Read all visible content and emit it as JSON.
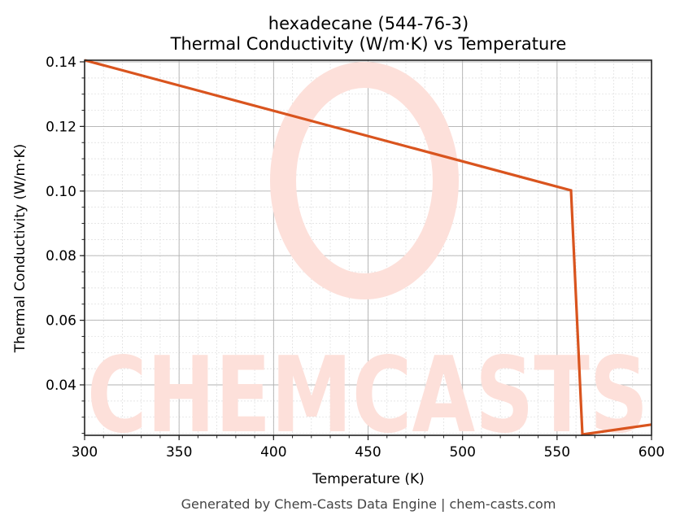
{
  "chart_data": {
    "type": "line",
    "title": "hexadecane (544-76-3)",
    "subtitle": "Thermal Conductivity (W/m·K) vs Temperature",
    "xlabel": "Temperature (K)",
    "ylabel": "Thermal Conductivity (W/m·K)",
    "xlim": [
      300,
      600
    ],
    "ylim": [
      0.0244,
      0.1405
    ],
    "xticks": [
      300,
      350,
      400,
      450,
      500,
      550,
      600
    ],
    "xtick_labels": [
      "300",
      "350",
      "400",
      "450",
      "500",
      "550",
      "600"
    ],
    "yticks": [
      0.04,
      0.06,
      0.08,
      0.1,
      0.12,
      0.14
    ],
    "ytick_labels": [
      "0.04",
      "0.06",
      "0.08",
      "0.10",
      "0.12",
      "0.14"
    ],
    "grid": true,
    "minor_grid": true,
    "legend": null,
    "series": [
      {
        "name": "Thermal Conductivity",
        "color": "#d9541e",
        "x": [
          300,
          557.4,
          563.4,
          600
        ],
        "y": [
          0.1405,
          0.1002,
          0.0244,
          0.0277
        ]
      }
    ]
  },
  "footer": "Generated by Chem-Casts Data Engine | chem-casts.com",
  "watermark": {
    "text": "CHEMCASTS",
    "color": "#fde0da"
  }
}
